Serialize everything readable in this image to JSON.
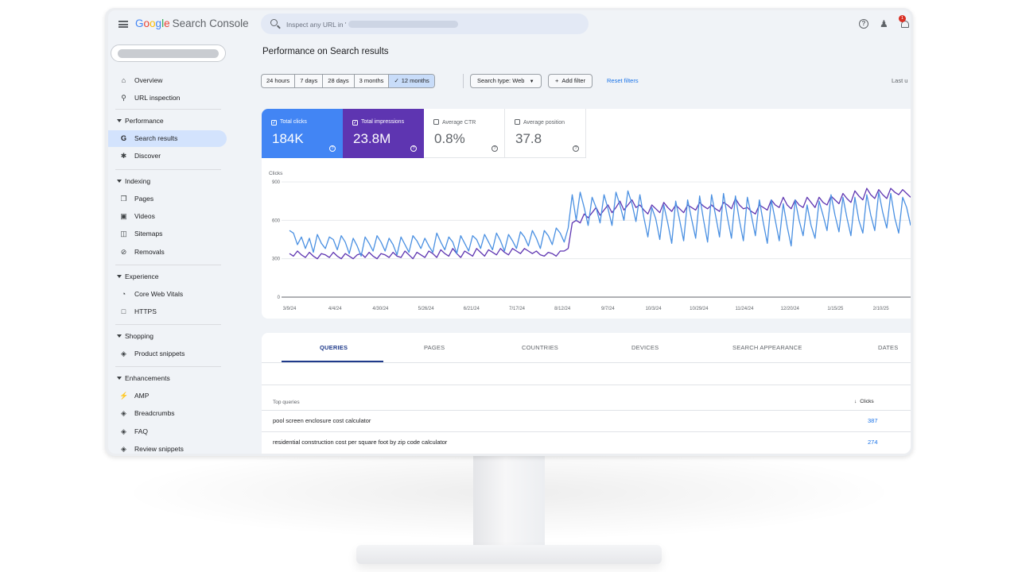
{
  "app": {
    "logo_letters": [
      "G",
      "o",
      "o",
      "g",
      "l",
      "e"
    ],
    "logo_word": "Search Console",
    "search_placeholder": "Inspect any URL in '",
    "bell_badge": "1"
  },
  "sidebar": {
    "top_items": [
      {
        "label": "Overview",
        "icon": "home-icon"
      },
      {
        "label": "URL inspection",
        "icon": "search-icon"
      }
    ],
    "sections": {
      "performance": {
        "title": "Performance",
        "items": [
          {
            "label": "Search results",
            "icon": "google-g-icon"
          },
          {
            "label": "Discover",
            "icon": "asterisk-icon"
          }
        ]
      },
      "indexing": {
        "title": "Indexing",
        "items": [
          {
            "label": "Pages",
            "icon": "pages-icon"
          },
          {
            "label": "Videos",
            "icon": "videos-icon"
          },
          {
            "label": "Sitemaps",
            "icon": "sitemaps-icon"
          },
          {
            "label": "Removals",
            "icon": "removals-icon"
          }
        ]
      },
      "experience": {
        "title": "Experience",
        "items": [
          {
            "label": "Core Web Vitals",
            "icon": "gauge-icon"
          },
          {
            "label": "HTTPS",
            "icon": "lock-icon"
          }
        ]
      },
      "shopping": {
        "title": "Shopping",
        "items": [
          {
            "label": "Product snippets",
            "icon": "layers-icon"
          }
        ]
      },
      "enhancements": {
        "title": "Enhancements",
        "items": [
          {
            "label": "AMP",
            "icon": "bolt-icon"
          },
          {
            "label": "Breadcrumbs",
            "icon": "layers-icon"
          },
          {
            "label": "FAQ",
            "icon": "layers-icon"
          },
          {
            "label": "Review snippets",
            "icon": "layers-icon"
          }
        ]
      }
    }
  },
  "main": {
    "title": "Performance on Search results",
    "date_ranges": [
      "24 hours",
      "7 days",
      "28 days",
      "3 months",
      "12 months"
    ],
    "selected_range": "12 months",
    "search_type": "Search type: Web",
    "add_filter": "Add filter",
    "reset_filters": "Reset filters",
    "last_updated": "Last u"
  },
  "metrics": {
    "clicks": {
      "label": "Total clicks",
      "value": "184K",
      "checked": true,
      "color": "#4285f4"
    },
    "impressions": {
      "label": "Total impressions",
      "value": "23.8M",
      "checked": true,
      "color": "#5e35b1"
    },
    "ctr": {
      "label": "Average CTR",
      "value": "0.8%",
      "checked": false
    },
    "position": {
      "label": "Average position",
      "value": "37.8",
      "checked": false
    }
  },
  "chart_data": {
    "type": "line",
    "ylabel": "Clicks",
    "ylim": [
      0,
      900
    ],
    "yticks": [
      0,
      300,
      600,
      900
    ],
    "x_tick_labels": [
      "3/9/24",
      "4/4/24",
      "4/30/24",
      "5/26/24",
      "6/21/24",
      "7/17/24",
      "8/12/24",
      "9/7/24",
      "10/3/24",
      "10/29/24",
      "11/24/24",
      "12/20/24",
      "1/15/25",
      "2/10/25"
    ],
    "grid": true,
    "legend": "none",
    "series": [
      {
        "color": "#4a90e2",
        "values": [
          520,
          500,
          410,
          470,
          380,
          460,
          350,
          490,
          420,
          380,
          470,
          450,
          370,
          480,
          430,
          340,
          460,
          400,
          320,
          470,
          420,
          360,
          480,
          430,
          360,
          460,
          410,
          330,
          470,
          410,
          350,
          480,
          440,
          380,
          460,
          400,
          350,
          500,
          430,
          370,
          470,
          430,
          340,
          480,
          420,
          360,
          480,
          450,
          380,
          490,
          430,
          370,
          500,
          440,
          360,
          490,
          440,
          380,
          510,
          470,
          400,
          520,
          460,
          380,
          520,
          480,
          410,
          540,
          500,
          430,
          540,
          800,
          600,
          820,
          700,
          560,
          780,
          700,
          580,
          800,
          690,
          560,
          820,
          720,
          600,
          830,
          730,
          590,
          800,
          620,
          470,
          700,
          610,
          450,
          720,
          580,
          420,
          750,
          600,
          440,
          760,
          610,
          460,
          790,
          600,
          430,
          800,
          640,
          470,
          810,
          620,
          460,
          790,
          600,
          440,
          780,
          640,
          480,
          760,
          580,
          420,
          760,
          600,
          440,
          730,
          550,
          400,
          760,
          600,
          480,
          720,
          560,
          460,
          750,
          640,
          520,
          800,
          640,
          510,
          780,
          620,
          480,
          780,
          600,
          500,
          800,
          640,
          520,
          820,
          660,
          540,
          810,
          620,
          500,
          780,
          700,
          560
        ]
      },
      {
        "color": "#5e35b1",
        "values": [
          340,
          320,
          360,
          330,
          310,
          350,
          320,
          300,
          340,
          330,
          310,
          350,
          320,
          300,
          340,
          320,
          300,
          330,
          340,
          310,
          350,
          320,
          300,
          340,
          330,
          310,
          350,
          320,
          310,
          360,
          330,
          300,
          350,
          330,
          310,
          360,
          340,
          310,
          370,
          340,
          320,
          380,
          340,
          310,
          360,
          340,
          320,
          380,
          350,
          320,
          370,
          350,
          330,
          380,
          350,
          330,
          380,
          360,
          340,
          380,
          360,
          340,
          360,
          330,
          320,
          350,
          340,
          320,
          360,
          360,
          380,
          580,
          600,
          580,
          650,
          620,
          660,
          700,
          640,
          680,
          720,
          660,
          700,
          750,
          680,
          720,
          760,
          700,
          720,
          680,
          650,
          720,
          690,
          660,
          740,
          700,
          670,
          720,
          690,
          660,
          720,
          700,
          680,
          740,
          710,
          690,
          720,
          690,
          670,
          740,
          720,
          690,
          770,
          720,
          690,
          700,
          670,
          650,
          720,
          700,
          680,
          760,
          720,
          700,
          780,
          720,
          690,
          760,
          720,
          700,
          780,
          740,
          700,
          780,
          740,
          720,
          790,
          760,
          730,
          810,
          770,
          740,
          830,
          790,
          760,
          850,
          800,
          770,
          840,
          800,
          770,
          850,
          820,
          800,
          840,
          810,
          780
        ]
      }
    ]
  },
  "table": {
    "tabs": [
      "QUERIES",
      "PAGES",
      "COUNTRIES",
      "DEVICES",
      "SEARCH APPEARANCE",
      "DATES"
    ],
    "active_tab": "QUERIES",
    "header": {
      "label": "Top queries",
      "clicks": "Clicks"
    },
    "rows": [
      {
        "query": "pool screen enclosure cost calculator",
        "clicks": "387"
      },
      {
        "query": "residential construction cost per square foot by zip code calculator",
        "clicks": "274"
      }
    ]
  }
}
